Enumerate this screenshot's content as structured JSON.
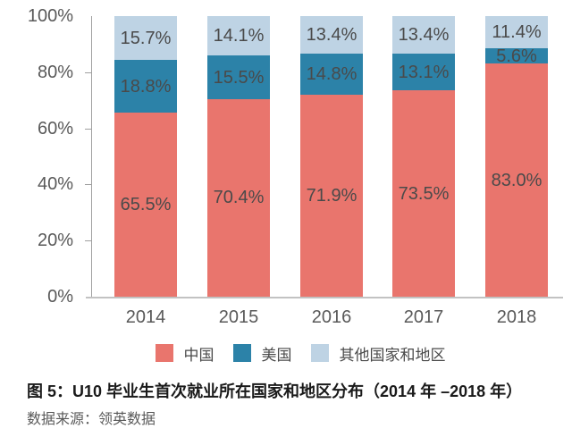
{
  "chart_data": {
    "type": "bar",
    "stacked": true,
    "title": "图 5：U10 毕业生首次就业所在国家和地区分布（2014 年 –2018 年）",
    "categories": [
      "2014",
      "2015",
      "2016",
      "2017",
      "2018"
    ],
    "series": [
      {
        "key": "china",
        "name": "中国",
        "color": "#E9756D",
        "values": [
          65.5,
          70.4,
          71.9,
          73.5,
          83.0
        ]
      },
      {
        "key": "usa",
        "name": "美国",
        "color": "#2C82A8",
        "values": [
          18.8,
          15.5,
          14.8,
          13.1,
          5.6
        ]
      },
      {
        "key": "other",
        "name": "其他国家和地区",
        "color": "#BED3E4",
        "values": [
          15.7,
          14.1,
          13.4,
          13.4,
          11.4
        ]
      }
    ],
    "y_axis": {
      "min": 0,
      "max": 100,
      "tick_step": 20,
      "tick_labels": [
        "0%",
        "20%",
        "40%",
        "60%",
        "80%",
        "100%"
      ]
    },
    "value_suffix": "%",
    "value_decimals": 1,
    "legend_position": "bottom",
    "grid": false
  },
  "caption": {
    "title": "图 5：U10 毕业生首次就业所在国家和地区分布（2014 年 –2018 年）",
    "source": "数据来源：领英数据"
  },
  "colors": {
    "axis_line": "#A0A0A0",
    "baseline": "#C2C2C2",
    "axis_text": "#595959",
    "data_label": "#4A4A4A",
    "legend_text": "#4A4A4A",
    "title_text": "#1A1A1A",
    "source_text": "#595959",
    "background": "#FFFFFF"
  }
}
